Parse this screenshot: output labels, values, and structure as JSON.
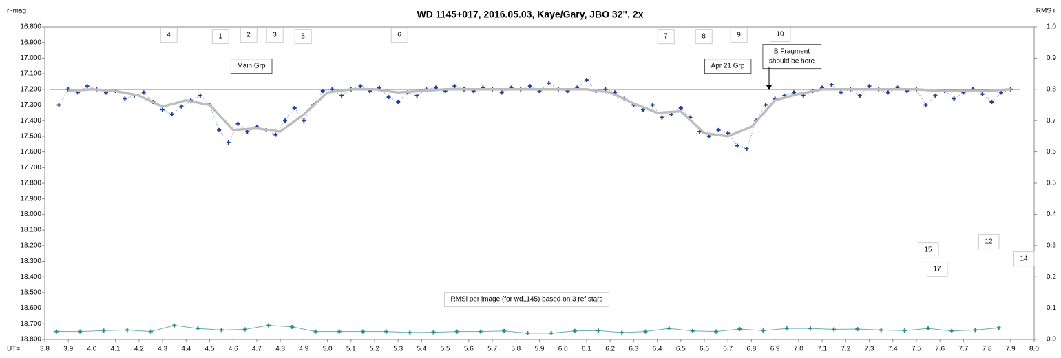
{
  "chart_data": {
    "type": "scatter-line",
    "title": "WD 1145+017,  2016.05.03,  Kaye/Gary,  JBO 32\",  2x",
    "y_label": "r'-mag",
    "y2_label": "RMS i",
    "x_label": "UT=",
    "xlim": [
      3.8,
      8.0
    ],
    "xticks": [
      3.8,
      3.9,
      {
        "value": 4.0,
        "label": "4.0"
      },
      4.1,
      4.2,
      4.3,
      4.4,
      4.5,
      4.6,
      4.7,
      4.8,
      4.9,
      {
        "value": 5.0,
        "label": "5.0"
      },
      5.1,
      5.2,
      5.3,
      5.4,
      5.5,
      5.6,
      5.7,
      5.8,
      5.9,
      {
        "value": 6.0,
        "label": "6.0"
      },
      6.1,
      6.2,
      6.3,
      6.4,
      6.5,
      6.6,
      6.7,
      6.8,
      6.9,
      {
        "value": 7.0,
        "label": "7.0"
      },
      7.1,
      7.2,
      7.3,
      7.4,
      7.5,
      7.6,
      7.7,
      7.8,
      7.9,
      {
        "value": 8.0,
        "label": "8.0"
      }
    ],
    "ylim": [
      16.8,
      18.8
    ],
    "y_inverted": true,
    "yticks": [
      {
        "value": 16.8,
        "label": "16.800"
      },
      {
        "value": 16.9,
        "label": "16.900"
      },
      {
        "value": 17.0,
        "label": "17.000"
      },
      {
        "value": 17.1,
        "label": "17.100"
      },
      {
        "value": 17.2,
        "label": "17.200"
      },
      {
        "value": 17.3,
        "label": "17.300"
      },
      {
        "value": 17.4,
        "label": "17.400"
      },
      {
        "value": 17.5,
        "label": "17.500"
      },
      {
        "value": 17.6,
        "label": "17.600"
      },
      {
        "value": 17.7,
        "label": "17.700"
      },
      {
        "value": 17.8,
        "label": "17.800"
      },
      {
        "value": 17.9,
        "label": "17.900"
      },
      {
        "value": 18.0,
        "label": "18.000"
      },
      {
        "value": 18.1,
        "label": "18.100"
      },
      {
        "value": 18.2,
        "label": "18.200"
      },
      {
        "value": 18.3,
        "label": "18.300"
      },
      {
        "value": 18.4,
        "label": "18.400"
      },
      {
        "value": 18.5,
        "label": "18.500"
      },
      {
        "value": 18.6,
        "label": "18.600"
      },
      {
        "value": 18.7,
        "label": "18.700"
      },
      {
        "value": 18.8,
        "label": "18.800"
      }
    ],
    "y2lim": [
      0,
      1
    ],
    "y2ticks": [
      {
        "value": 0,
        "label": "0.0"
      },
      0.1,
      0.2,
      0.3,
      0.4,
      0.5,
      0.6,
      0.7,
      0.8,
      0.9,
      {
        "value": 1,
        "label": "1.0"
      }
    ],
    "reference_level": 17.2,
    "series": [
      {
        "color": "#1f3f9f",
        "marker": "plus",
        "line": "dotted",
        "x": [
          3.86,
          3.9,
          3.94,
          3.98,
          4.02,
          4.06,
          4.1,
          4.14,
          4.18,
          4.22,
          4.26,
          4.3,
          4.34,
          4.38,
          4.42,
          4.46,
          4.5,
          4.54,
          4.58,
          4.62,
          4.66,
          4.7,
          4.74,
          4.78,
          4.82,
          4.86,
          4.9,
          4.94,
          4.98,
          5.02,
          5.06,
          5.1,
          5.14,
          5.18,
          5.22,
          5.26,
          5.3,
          5.34,
          5.38,
          5.42,
          5.46,
          5.5,
          5.54,
          5.58,
          5.62,
          5.66,
          5.7,
          5.74,
          5.78,
          5.82,
          5.86,
          5.9,
          5.94,
          5.98,
          6.02,
          6.06,
          6.1,
          6.14,
          6.18,
          6.22,
          6.26,
          6.3,
          6.34,
          6.38,
          6.42,
          6.46,
          6.5,
          6.54,
          6.58,
          6.62,
          6.66,
          6.7,
          6.74,
          6.78,
          6.82,
          6.86,
          6.9,
          6.94,
          6.98,
          7.02,
          7.06,
          7.1,
          7.14,
          7.18,
          7.22,
          7.26,
          7.3,
          7.34,
          7.38,
          7.42,
          7.46,
          7.5,
          7.54,
          7.58,
          7.62,
          7.66,
          7.7,
          7.74,
          7.78,
          7.82,
          7.86,
          7.9
        ],
        "values": [
          17.3,
          17.2,
          17.22,
          17.18,
          17.2,
          17.22,
          17.21,
          17.26,
          17.24,
          17.22,
          17.28,
          17.33,
          17.36,
          17.31,
          17.27,
          17.24,
          17.3,
          17.46,
          17.54,
          17.42,
          17.47,
          17.44,
          17.46,
          17.49,
          17.4,
          17.32,
          17.4,
          17.3,
          17.21,
          17.2,
          17.24,
          17.2,
          17.18,
          17.21,
          17.19,
          17.25,
          17.28,
          17.22,
          17.24,
          17.2,
          17.19,
          17.21,
          17.18,
          17.2,
          17.21,
          17.19,
          17.2,
          17.22,
          17.19,
          17.2,
          17.18,
          17.21,
          17.16,
          17.2,
          17.21,
          17.19,
          17.14,
          17.21,
          17.2,
          17.22,
          17.26,
          17.3,
          17.33,
          17.3,
          17.38,
          17.36,
          17.32,
          17.38,
          17.47,
          17.5,
          17.46,
          17.48,
          17.56,
          17.58,
          17.4,
          17.3,
          17.26,
          17.24,
          17.22,
          17.24,
          17.21,
          17.19,
          17.17,
          17.22,
          17.2,
          17.24,
          17.18,
          17.2,
          17.22,
          17.19,
          17.21,
          17.2,
          17.3,
          17.24,
          17.21,
          17.26,
          17.22,
          17.2,
          17.23,
          17.28,
          17.22,
          17.2
        ]
      },
      {
        "color": "#bdbdbd",
        "marker": "none",
        "line": "thick",
        "x": [
          3.9,
          4.0,
          4.1,
          4.2,
          4.3,
          4.4,
          4.5,
          4.6,
          4.7,
          4.8,
          4.9,
          5.0,
          5.1,
          5.2,
          5.3,
          5.4,
          5.5,
          5.6,
          5.7,
          5.8,
          5.9,
          6.0,
          6.1,
          6.2,
          6.3,
          6.4,
          6.5,
          6.6,
          6.7,
          6.8,
          6.9,
          7.0,
          7.1,
          7.2,
          7.3,
          7.4,
          7.5,
          7.6,
          7.7,
          7.8,
          7.9
        ],
        "values": [
          17.21,
          17.2,
          17.21,
          17.24,
          17.31,
          17.27,
          17.3,
          17.46,
          17.45,
          17.47,
          17.36,
          17.22,
          17.2,
          17.2,
          17.22,
          17.21,
          17.2,
          17.2,
          17.2,
          17.2,
          17.2,
          17.2,
          17.2,
          17.22,
          17.29,
          17.35,
          17.34,
          17.48,
          17.5,
          17.44,
          17.27,
          17.23,
          17.2,
          17.2,
          17.2,
          17.2,
          17.2,
          17.21,
          17.21,
          17.21,
          17.2
        ]
      },
      {
        "color": "#2e8b8b",
        "marker": "plus",
        "line": "thin",
        "axis": "y2",
        "x": [
          3.85,
          3.95,
          4.05,
          4.15,
          4.25,
          4.35,
          4.45,
          4.55,
          4.65,
          4.75,
          4.85,
          4.95,
          5.05,
          5.15,
          5.25,
          5.35,
          5.45,
          5.55,
          5.65,
          5.75,
          5.85,
          5.95,
          6.05,
          6.15,
          6.25,
          6.35,
          6.45,
          6.55,
          6.65,
          6.75,
          6.85,
          6.95,
          7.05,
          7.15,
          7.25,
          7.35,
          7.45,
          7.55,
          7.65,
          7.75,
          7.85
        ],
        "values": [
          0.025,
          0.025,
          0.028,
          0.03,
          0.025,
          0.045,
          0.035,
          0.03,
          0.032,
          0.045,
          0.04,
          0.025,
          0.025,
          0.025,
          0.025,
          0.022,
          0.023,
          0.025,
          0.025,
          0.027,
          0.02,
          0.02,
          0.027,
          0.028,
          0.022,
          0.025,
          0.035,
          0.027,
          0.025,
          0.033,
          0.028,
          0.035,
          0.035,
          0.032,
          0.033,
          0.03,
          0.028,
          0.035,
          0.027,
          0.03,
          0.037
        ]
      }
    ],
    "annotations": [
      "4",
      "1",
      "2",
      "3",
      "5",
      "6",
      "7",
      "8",
      "9",
      "10",
      "15",
      "12",
      "14",
      "17",
      "Main Grp",
      "Apr 21 Grp",
      "B Fragment",
      "should be here",
      "RMSi per image (for wd1145) based on 3 ref stars"
    ]
  }
}
